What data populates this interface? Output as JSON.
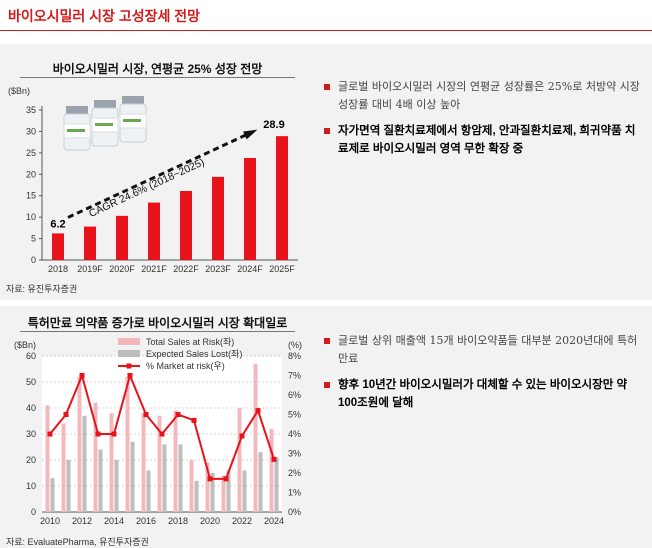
{
  "page_title": "바이오시밀러 시장 고성장세 전망",
  "section1": {
    "chart_title": "바이오시밀러 시장, 연평균 25% 성장 전망",
    "source": "자료: 유진투자증권",
    "bullets": [
      {
        "text": "글로벌 바이오시밀러 시장의 연평균 성장률은 25%로 처방약 시장 성장률 대비 4배 이상 높아",
        "style": "plain"
      },
      {
        "text": "자가면역 질환치료제에서 항암제, 안과질환치료제, 희귀약품 치료제로 바이오시밀러 영역 무한 확장 중",
        "style": "bold"
      }
    ]
  },
  "section2": {
    "chart_title": "특허만료 의약품 증가로 바이오시밀러 시장 확대일로",
    "source": "자료: EvaluatePharma, 유진투자증권",
    "bullets": [
      {
        "text": "글로벌 상위 매출액 15개 바이오약품들 대부분 2020년대에 특허만료",
        "style": "plain"
      },
      {
        "text": "향후 10년간 바이오시밀러가 대체할 수 있는 바이오시장만 약 100조원에 달해",
        "style": "bold"
      }
    ]
  },
  "colors": {
    "accent": "#d11c1c",
    "bar_red": "#e8121b",
    "bar_pink": "#f2b8bc",
    "bar_gray": "#bdbdbd"
  },
  "chart_data": [
    {
      "type": "bar",
      "title": "바이오시밀러 시장, 연평균 25% 성장 전망",
      "ylabel": "($Bn)",
      "categories": [
        "2018",
        "2019F",
        "2020F",
        "2021F",
        "2022F",
        "2023F",
        "2024F",
        "2025F"
      ],
      "values": [
        6.2,
        7.8,
        10.3,
        13.4,
        16.1,
        19.4,
        23.8,
        28.9
      ],
      "ylim": [
        0,
        35
      ],
      "yticks": [
        0,
        5,
        10,
        15,
        20,
        25,
        30,
        35
      ],
      "data_labels": {
        "first": "6.2",
        "last": "28.9"
      },
      "annotation": "CAGR 24.6% (2018~2025)",
      "grid": false
    },
    {
      "type": "bar+line",
      "title": "특허만료 의약품 증가로 바이오시밀러 시장 확대일로",
      "ylabel_left": "($Bn)",
      "ylabel_right": "(%)",
      "x": [
        2010,
        2011,
        2012,
        2013,
        2014,
        2015,
        2016,
        2017,
        2018,
        2019,
        2020,
        2021,
        2022,
        2023,
        2024
      ],
      "xticks": [
        "2010",
        "2012",
        "2014",
        "2016",
        "2018",
        "2020",
        "2022",
        "2024"
      ],
      "ylim_left": [
        0,
        60
      ],
      "yticks_left": [
        0,
        10,
        20,
        30,
        40,
        50,
        60
      ],
      "ylim_right": [
        0,
        8
      ],
      "yticks_right": [
        "0%",
        "1%",
        "2%",
        "3%",
        "4%",
        "5%",
        "6%",
        "7%",
        "8%"
      ],
      "legend_position": "top-right",
      "series": [
        {
          "name": "Total Sales at Risk(좌)",
          "kind": "bar",
          "values": [
            41,
            34,
            52,
            42,
            38,
            52,
            38,
            37,
            39,
            20,
            19,
            14,
            40,
            57,
            32
          ]
        },
        {
          "name": "Expected Sales Lost(좌)",
          "kind": "bar",
          "values": [
            13,
            20,
            37,
            24,
            20,
            27,
            16,
            26,
            26,
            12,
            15,
            16,
            16,
            23,
            21
          ]
        },
        {
          "name": "% Market at risk(우)",
          "kind": "line",
          "values": [
            4.0,
            5.0,
            7.0,
            4.0,
            4.0,
            7.0,
            5.0,
            4.0,
            5.0,
            4.7,
            1.7,
            1.7,
            3.9,
            5.2,
            2.7
          ]
        }
      ],
      "grid": true
    }
  ]
}
